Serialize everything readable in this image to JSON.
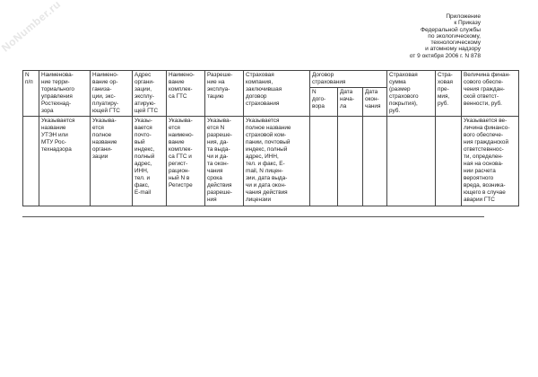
{
  "watermark": "NoNumber.ru",
  "note": "Приложение\nк Приказу\nФедеральной службы\nпо экологическому,\nтехнологическому\nи атомному надзору\nот 9 октября 2006 г. N 878",
  "table": {
    "headers": [
      "N\nп/п",
      "Наименова-\nние терри-\nториального\nуправления\nРостехнад-\nзора",
      "Наимено-\nвание ор-\nганиза-\nции, экс-\nплуатиру-\nющей ГТС",
      "Адрес\nоргани-\nзации,\nэксплу-\nатирую-\nщей ГТС",
      "Наимено-\nвание\nкомплек-\nса ГТС",
      "Разреше-\nние на\nэксплуа-\nтацию",
      "Страховая\nкомпания,\nзаключившая\nдоговор\nстрахования",
      "Договор\nстрахования",
      "Страховая\nсумма\n(размер\nстрахового\nпокрытия),\nруб.",
      "Стра-\nховая\nпре-\nмия,\nруб.",
      "Величина финан-\nсового обеспе-\nчения граждан-\nской ответст-\nвенности, руб."
    ],
    "subheaders": [
      "N\nдого-\nвора",
      "Дата\nнача-\nла",
      "Дата\nокон-\nчания"
    ],
    "row": [
      "",
      "Указывается\nназвание\nУТЭН или\nМТУ Рос-\nтехнадзора",
      "Указыва-\nется\nполное\nназвание\nоргани-\nзации",
      "Указы-\nвается\nпочто-\nвый\nиндекс,\nполный\nадрес,\nИНН,\nтел. и\nфакс,\nE-mail",
      "Указыва-\nется\nнаимено-\nвание\nкомплек-\nса ГТС и\nрегист-\nрацион-\nный N в\nРегистре",
      "Указыва-\nется N\nразреше-\nния, да-\nта выда-\nчи и да-\nта окон-\nчания\nсрока\nдействия\nразреше-\nния",
      "Указывается\nполное название\nстраховой ком-\nпании, почтовый\nиндекс, полный\nадрес, ИНН,\nтел. и факс, E-\nmail, N лицен-\nзии, дата выда-\nчи и дата окон-\nчания действия\nлицензии",
      "",
      "",
      "",
      "",
      "",
      "Указывается ве-\nличина финансо-\nвого обеспече-\nния гражданской\nответстевннос-\nти, определен-\nная на основа-\nнии расчета\nвероятного\nвреда, возника-\nющего в случае\nаварии ГТС"
    ]
  }
}
